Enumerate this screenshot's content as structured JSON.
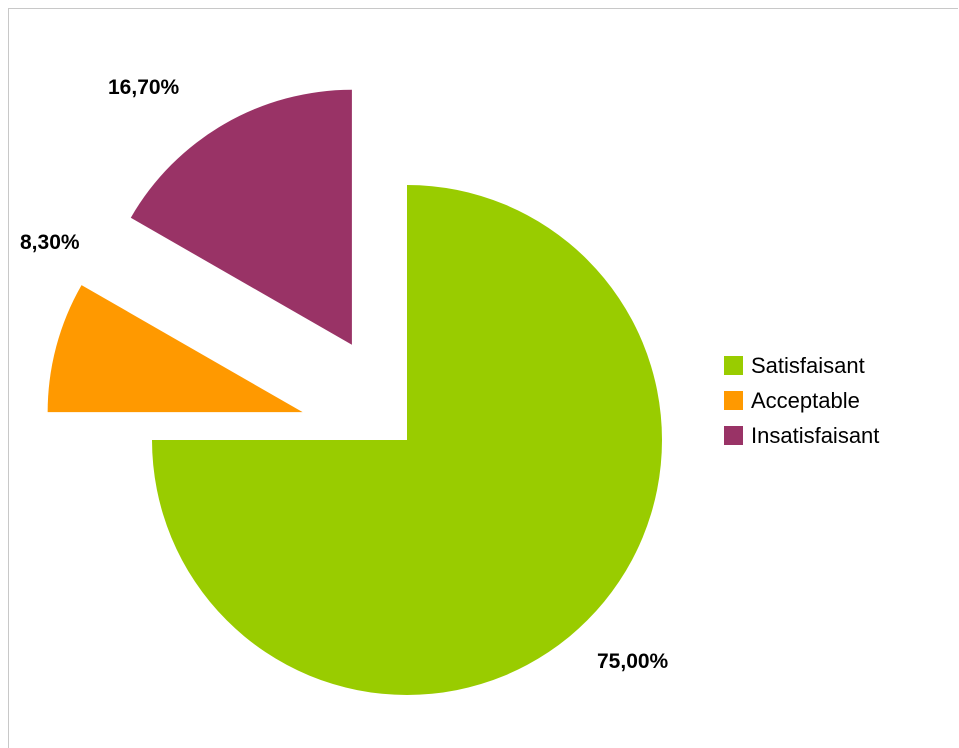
{
  "chart_data": {
    "type": "pie",
    "series": [
      {
        "name": "Satisfaisant",
        "value": 75.0,
        "label": "75,00%",
        "color": "#99cc00"
      },
      {
        "name": "Acceptable",
        "value": 8.3,
        "label": "8,30%",
        "color": "#ff9900"
      },
      {
        "name": "Insatisfaisant",
        "value": 16.7,
        "label": "16,70%",
        "color": "#993366"
      }
    ],
    "exploded": true,
    "legend_position": "right"
  }
}
